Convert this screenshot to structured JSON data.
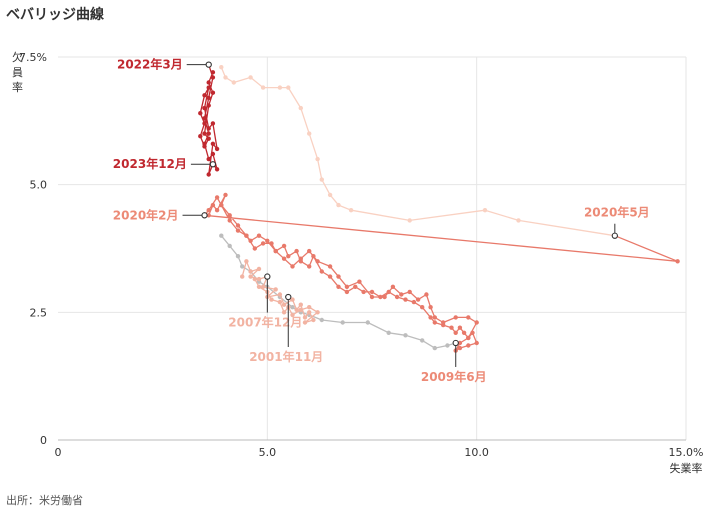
{
  "page": {
    "title": "ベバリッジ曲線",
    "source": "出所：米労働省"
  },
  "chart_data": {
    "type": "line",
    "title": "ベバリッジ曲線",
    "xlabel": "失業率",
    "ylabel": "欠員率",
    "xlim": [
      0,
      15
    ],
    "ylim": [
      0,
      7.5
    ],
    "x_ticks": [
      "0",
      "5.0",
      "10.0",
      "15.0%"
    ],
    "y_ticks": [
      "0",
      "2.5",
      "5.0",
      "7.5%"
    ],
    "grid": true,
    "colors": {
      "gray": "#bdbdbd",
      "light_salmon": "#f2b3a2",
      "salmon": "#e8796a",
      "peach": "#f9d1c2",
      "red": "#c0282f",
      "annotation_salmon": "#ec8a76",
      "annotation_red": "#c0282f",
      "gridline": "#e6e6e6"
    },
    "series": [
      {
        "color": "gray",
        "points": [
          [
            3.9,
            4.0
          ],
          [
            4.1,
            3.8
          ],
          [
            4.3,
            3.6
          ],
          [
            4.4,
            3.4
          ],
          [
            4.6,
            3.3
          ],
          [
            4.8,
            3.1
          ],
          [
            5.0,
            3.0
          ],
          [
            5.3,
            2.8
          ],
          [
            5.6,
            2.6
          ],
          [
            5.8,
            2.5
          ],
          [
            6.0,
            2.45
          ],
          [
            6.3,
            2.35
          ],
          [
            6.8,
            2.3
          ],
          [
            7.4,
            2.3
          ],
          [
            7.9,
            2.1
          ],
          [
            8.3,
            2.05
          ],
          [
            8.7,
            1.95
          ],
          [
            9.0,
            1.8
          ],
          [
            9.3,
            1.85
          ],
          [
            9.5,
            1.9
          ]
        ]
      },
      {
        "color": "light_salmon",
        "points": [
          [
            4.4,
            3.2
          ],
          [
            4.5,
            3.5
          ],
          [
            4.6,
            3.3
          ],
          [
            4.8,
            3.35
          ],
          [
            4.6,
            3.2
          ],
          [
            4.8,
            3.15
          ],
          [
            5.0,
            3.2
          ],
          [
            4.9,
            3.0
          ],
          [
            5.2,
            2.95
          ],
          [
            5.0,
            2.8
          ],
          [
            5.3,
            2.85
          ],
          [
            5.4,
            2.65
          ],
          [
            5.6,
            2.75
          ],
          [
            5.7,
            2.55
          ],
          [
            5.8,
            2.65
          ],
          [
            5.9,
            2.4
          ],
          [
            6.0,
            2.5
          ],
          [
            6.1,
            2.35
          ],
          [
            5.9,
            2.3
          ],
          [
            6.2,
            2.5
          ],
          [
            6.0,
            2.6
          ],
          [
            5.8,
            2.55
          ],
          [
            5.6,
            2.45
          ],
          [
            5.5,
            2.6
          ],
          [
            5.4,
            2.5
          ],
          [
            5.3,
            2.7
          ],
          [
            5.1,
            2.75
          ],
          [
            5.0,
            2.9
          ],
          [
            4.8,
            3.0
          ],
          [
            4.7,
            3.15
          ]
        ]
      },
      {
        "color": "salmon",
        "points": [
          [
            3.6,
            4.4
          ],
          [
            3.7,
            4.6
          ],
          [
            3.8,
            4.5
          ],
          [
            4.0,
            4.8
          ],
          [
            3.9,
            4.6
          ],
          [
            4.1,
            4.4
          ],
          [
            4.3,
            4.2
          ],
          [
            4.5,
            4.0
          ],
          [
            4.6,
            3.9
          ],
          [
            4.8,
            4.0
          ],
          [
            5.0,
            3.9
          ],
          [
            5.2,
            3.7
          ],
          [
            5.4,
            3.8
          ],
          [
            5.5,
            3.6
          ],
          [
            5.7,
            3.7
          ],
          [
            5.8,
            3.5
          ],
          [
            6.0,
            3.4
          ],
          [
            6.1,
            3.6
          ],
          [
            6.3,
            3.3
          ],
          [
            6.5,
            3.2
          ],
          [
            6.7,
            3.0
          ],
          [
            6.9,
            2.9
          ],
          [
            7.1,
            3.0
          ],
          [
            7.3,
            2.9
          ],
          [
            7.5,
            2.9
          ],
          [
            7.7,
            2.8
          ],
          [
            7.9,
            2.9
          ],
          [
            8.1,
            2.8
          ],
          [
            8.3,
            2.75
          ],
          [
            8.5,
            2.7
          ],
          [
            8.7,
            2.6
          ],
          [
            8.9,
            2.4
          ],
          [
            9.0,
            2.3
          ],
          [
            9.2,
            2.25
          ],
          [
            9.4,
            2.2
          ],
          [
            9.5,
            2.1
          ],
          [
            9.6,
            2.2
          ],
          [
            9.7,
            2.1
          ],
          [
            9.8,
            2.0
          ],
          [
            9.9,
            2.1
          ],
          [
            10.0,
            1.9
          ],
          [
            9.8,
            1.85
          ],
          [
            9.6,
            1.8
          ],
          [
            9.5,
            1.75
          ],
          [
            9.6,
            1.9
          ],
          [
            9.8,
            2.0
          ],
          [
            10.0,
            2.3
          ],
          [
            9.8,
            2.4
          ],
          [
            9.5,
            2.4
          ],
          [
            9.2,
            2.3
          ],
          [
            9.0,
            2.4
          ],
          [
            8.9,
            2.6
          ],
          [
            8.8,
            2.85
          ],
          [
            8.6,
            2.75
          ],
          [
            8.4,
            2.9
          ],
          [
            8.2,
            2.85
          ],
          [
            8.0,
            3.0
          ],
          [
            7.8,
            2.8
          ],
          [
            7.5,
            2.8
          ],
          [
            7.2,
            3.1
          ],
          [
            6.9,
            3.0
          ],
          [
            6.7,
            3.2
          ],
          [
            6.5,
            3.4
          ],
          [
            6.2,
            3.5
          ],
          [
            6.0,
            3.7
          ],
          [
            5.8,
            3.55
          ],
          [
            5.6,
            3.4
          ],
          [
            5.4,
            3.55
          ],
          [
            5.2,
            3.7
          ],
          [
            5.1,
            3.85
          ],
          [
            4.9,
            3.85
          ],
          [
            4.7,
            3.75
          ],
          [
            4.5,
            4.0
          ],
          [
            4.3,
            4.1
          ],
          [
            4.1,
            4.3
          ],
          [
            3.9,
            4.6
          ],
          [
            3.8,
            4.75
          ],
          [
            3.6,
            4.5
          ],
          [
            3.5,
            4.4
          ],
          [
            14.8,
            3.5
          ],
          [
            13.3,
            4.0
          ]
        ]
      },
      {
        "color": "peach",
        "points": [
          [
            13.3,
            4.0
          ],
          [
            11.0,
            4.3
          ],
          [
            10.2,
            4.5
          ],
          [
            8.4,
            4.3
          ],
          [
            7.0,
            4.5
          ],
          [
            6.7,
            4.6
          ],
          [
            6.5,
            4.8
          ],
          [
            6.3,
            5.1
          ],
          [
            6.2,
            5.5
          ],
          [
            6.0,
            6.0
          ],
          [
            5.8,
            6.5
          ],
          [
            5.5,
            6.9
          ],
          [
            5.3,
            6.9
          ],
          [
            4.9,
            6.9
          ],
          [
            4.6,
            7.1
          ],
          [
            4.2,
            7.0
          ],
          [
            4.0,
            7.1
          ],
          [
            3.9,
            7.3
          ]
        ]
      },
      {
        "color": "red",
        "points": [
          [
            3.6,
            7.35
          ],
          [
            3.7,
            7.1
          ],
          [
            3.6,
            6.7
          ],
          [
            3.5,
            6.3
          ],
          [
            3.6,
            6.0
          ],
          [
            3.5,
            5.8
          ],
          [
            3.6,
            5.5
          ],
          [
            3.7,
            5.6
          ],
          [
            3.8,
            5.3
          ],
          [
            3.7,
            5.4
          ],
          [
            3.6,
            5.2
          ],
          [
            3.7,
            5.8
          ],
          [
            3.8,
            5.7
          ],
          [
            3.7,
            6.2
          ],
          [
            3.6,
            6.1
          ],
          [
            3.5,
            6.5
          ],
          [
            3.6,
            6.9
          ],
          [
            3.5,
            6.75
          ],
          [
            3.4,
            6.4
          ],
          [
            3.5,
            6.2
          ],
          [
            3.4,
            5.95
          ],
          [
            3.5,
            5.75
          ],
          [
            3.6,
            5.9
          ],
          [
            3.5,
            6.0
          ],
          [
            3.6,
            6.55
          ],
          [
            3.7,
            6.8
          ],
          [
            3.6,
            7.0
          ],
          [
            3.7,
            7.2
          ]
        ]
      }
    ],
    "annotations": [
      {
        "label": "2022年3月",
        "x": 3.6,
        "y": 7.35,
        "color": "annotation_red",
        "side": "left"
      },
      {
        "label": "2023年12月",
        "x": 3.7,
        "y": 5.4,
        "color": "annotation_red",
        "side": "left"
      },
      {
        "label": "2020年2月",
        "x": 3.5,
        "y": 4.4,
        "color": "annotation_salmon",
        "side": "left"
      },
      {
        "label": "2020年5月",
        "x": 13.3,
        "y": 4.0,
        "color": "annotation_salmon",
        "side": "above"
      },
      {
        "label": "2007年12月",
        "x": 5.0,
        "y": 3.2,
        "color": "light_salmon",
        "side": "below"
      },
      {
        "label": "2001年11月",
        "x": 5.5,
        "y": 2.8,
        "color": "light_salmon",
        "side": "below"
      },
      {
        "label": "2009年6月",
        "x": 9.5,
        "y": 1.9,
        "color": "annotation_salmon",
        "side": "below"
      }
    ]
  }
}
